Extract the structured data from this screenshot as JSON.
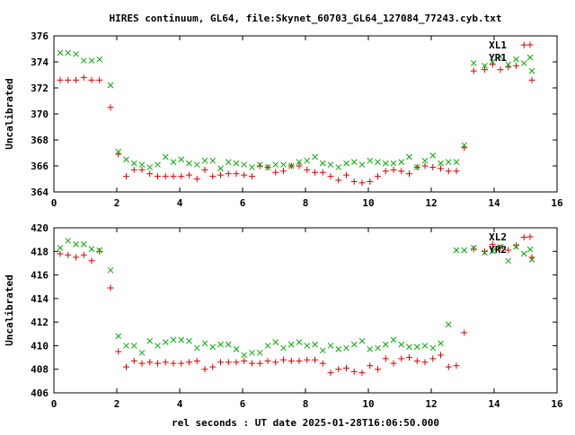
{
  "title": "HIRES continuum, GL64, file:Skynet_60703_GL64_127084_77243.cyb.txt",
  "xlabel": "rel seconds : UT date 2025-01-28T16:06:50.000",
  "colors": {
    "red": "#dd0000",
    "green": "#00aa00",
    "axis": "#000000",
    "background": "#ffffff"
  },
  "chart_data": [
    {
      "type": "scatter",
      "ylabel": "Uncalibrated",
      "xlim": [
        0,
        16
      ],
      "ylim": [
        364,
        376
      ],
      "xticks": [
        0,
        2,
        4,
        6,
        8,
        10,
        12,
        14,
        16
      ],
      "yticks": [
        364,
        366,
        368,
        370,
        372,
        374,
        376
      ],
      "legend_position": "top-right",
      "series": [
        {
          "name": "XL1",
          "marker": "plus",
          "color": "#dd0000",
          "x": [
            0.2,
            0.45,
            0.7,
            0.95,
            1.2,
            1.45,
            1.8,
            2.05,
            2.3,
            2.55,
            2.8,
            3.05,
            3.3,
            3.55,
            3.8,
            4.05,
            4.3,
            4.55,
            4.8,
            5.05,
            5.3,
            5.55,
            5.8,
            6.05,
            6.3,
            6.55,
            6.8,
            7.05,
            7.3,
            7.55,
            7.8,
            8.05,
            8.3,
            8.55,
            8.8,
            9.05,
            9.3,
            9.55,
            9.8,
            10.05,
            10.3,
            10.55,
            10.8,
            11.05,
            11.3,
            11.55,
            11.8,
            12.05,
            12.3,
            12.55,
            12.8,
            13.05,
            13.35,
            13.7,
            13.95,
            14.2,
            14.45,
            14.7,
            14.95,
            15.2
          ],
          "y": [
            372.6,
            372.6,
            372.6,
            372.8,
            372.6,
            372.6,
            370.5,
            366.9,
            365.2,
            365.7,
            365.7,
            365.4,
            365.2,
            365.2,
            365.2,
            365.2,
            365.3,
            365,
            365.7,
            365.2,
            365.3,
            365.4,
            365.4,
            365.3,
            365.2,
            366,
            365.9,
            365.5,
            365.6,
            366,
            366,
            365.7,
            365.5,
            365.5,
            365.2,
            364.9,
            365.3,
            364.8,
            364.7,
            364.8,
            365.2,
            365.6,
            365.7,
            365.6,
            365.4,
            365.9,
            366,
            365.9,
            365.8,
            365.6,
            365.6,
            367.4,
            373.3,
            373.4,
            373.8,
            373.4,
            373.6,
            373.7,
            375.3,
            372.6
          ]
        },
        {
          "name": "YR1",
          "marker": "cross",
          "color": "#00aa00",
          "x": [
            0.2,
            0.45,
            0.7,
            0.95,
            1.2,
            1.45,
            1.8,
            2.05,
            2.3,
            2.55,
            2.8,
            3.05,
            3.3,
            3.55,
            3.8,
            4.05,
            4.3,
            4.55,
            4.8,
            5.05,
            5.3,
            5.55,
            5.8,
            6.05,
            6.3,
            6.55,
            6.8,
            7.05,
            7.3,
            7.55,
            7.8,
            8.05,
            8.3,
            8.55,
            8.8,
            9.05,
            9.3,
            9.55,
            9.8,
            10.05,
            10.3,
            10.55,
            10.8,
            11.05,
            11.3,
            11.55,
            11.8,
            12.05,
            12.3,
            12.55,
            12.8,
            13.05,
            13.35,
            13.7,
            13.95,
            14.2,
            14.45,
            14.7,
            14.95,
            15.2
          ],
          "y": [
            374.7,
            374.7,
            374.6,
            374.1,
            374.1,
            374.2,
            372.2,
            367.1,
            366.5,
            366.2,
            366.1,
            365.9,
            366.1,
            366.7,
            366.3,
            366.5,
            366.2,
            366.1,
            366.4,
            366.4,
            365.8,
            366.3,
            366.2,
            366.1,
            365.9,
            366.1,
            365.9,
            366.1,
            366.1,
            366,
            366.3,
            366.4,
            366.7,
            366.2,
            366.1,
            365.9,
            366.2,
            366.3,
            366.1,
            366.4,
            366.3,
            366.2,
            366.2,
            366.3,
            366.7,
            365.9,
            366.4,
            366.8,
            366.2,
            366.3,
            366.3,
            367.6,
            373.9,
            373.7,
            374,
            374.4,
            373.8,
            374.2,
            373.9,
            373.3
          ]
        }
      ]
    },
    {
      "type": "scatter",
      "ylabel": "Uncalibrated",
      "xlim": [
        0,
        16
      ],
      "ylim": [
        406,
        420
      ],
      "xticks": [
        0,
        2,
        4,
        6,
        8,
        10,
        12,
        14,
        16
      ],
      "yticks": [
        406,
        408,
        410,
        412,
        414,
        416,
        418,
        420
      ],
      "legend_position": "top-right",
      "series": [
        {
          "name": "XL2",
          "marker": "plus",
          "color": "#dd0000",
          "x": [
            0.2,
            0.45,
            0.7,
            0.95,
            1.2,
            1.45,
            1.8,
            2.05,
            2.3,
            2.55,
            2.8,
            3.05,
            3.3,
            3.55,
            3.8,
            4.05,
            4.3,
            4.55,
            4.8,
            5.05,
            5.3,
            5.55,
            5.8,
            6.05,
            6.3,
            6.55,
            6.8,
            7.05,
            7.3,
            7.55,
            7.8,
            8.05,
            8.3,
            8.55,
            8.8,
            9.05,
            9.3,
            9.55,
            9.8,
            10.05,
            10.3,
            10.55,
            10.8,
            11.05,
            11.3,
            11.55,
            11.8,
            12.05,
            12.3,
            12.55,
            12.8,
            13.05,
            13.35,
            13.7,
            13.95,
            14.2,
            14.45,
            14.7,
            14.95,
            15.2
          ],
          "y": [
            417.8,
            417.7,
            417.5,
            417.7,
            417.2,
            418,
            414.9,
            409.5,
            408.2,
            408.7,
            408.5,
            408.6,
            408.5,
            408.6,
            408.5,
            408.5,
            408.6,
            408.7,
            408,
            408.2,
            408.6,
            408.6,
            408.6,
            408.7,
            408.5,
            408.5,
            408.7,
            408.6,
            408.8,
            408.7,
            408.7,
            408.8,
            408.8,
            408.5,
            407.7,
            408,
            408.1,
            407.8,
            407.7,
            408.3,
            408,
            408.9,
            408.5,
            408.9,
            409,
            408.7,
            408.6,
            408.9,
            409.2,
            408.2,
            408.3,
            411.1,
            418.2,
            418,
            418.6,
            418.3,
            418.1,
            418.5,
            419.2,
            417.5
          ]
        },
        {
          "name": "YR2",
          "marker": "cross",
          "color": "#00aa00",
          "x": [
            0.2,
            0.45,
            0.7,
            0.95,
            1.2,
            1.45,
            1.8,
            2.05,
            2.3,
            2.55,
            2.8,
            3.05,
            3.3,
            3.55,
            3.8,
            4.05,
            4.3,
            4.55,
            4.8,
            5.05,
            5.3,
            5.55,
            5.8,
            6.05,
            6.3,
            6.55,
            6.8,
            7.05,
            7.3,
            7.55,
            7.8,
            8.05,
            8.3,
            8.55,
            8.8,
            9.05,
            9.3,
            9.55,
            9.8,
            10.05,
            10.3,
            10.55,
            10.8,
            11.05,
            11.3,
            11.55,
            11.8,
            12.05,
            12.3,
            12.55,
            12.8,
            13.05,
            13.35,
            13.7,
            13.95,
            14.2,
            14.45,
            14.7,
            14.95,
            15.2
          ],
          "y": [
            418.3,
            418.9,
            418.6,
            418.6,
            418.2,
            418.1,
            416.4,
            410.8,
            410,
            410,
            409.4,
            410.4,
            410,
            410.3,
            410.5,
            410.5,
            410.4,
            409.8,
            410.2,
            409.9,
            410.1,
            410.1,
            409.7,
            409.2,
            409.4,
            409.4,
            410,
            410.3,
            409.8,
            410.1,
            410.3,
            410,
            410.1,
            409.6,
            410,
            409.7,
            409.8,
            410.1,
            410.4,
            409.7,
            409.8,
            410.1,
            410.5,
            410.1,
            409.9,
            409.9,
            410,
            409.8,
            410.2,
            411.8,
            418.1,
            418.1,
            418.3,
            417.9,
            418,
            418.4,
            417.2,
            418.4,
            417.8,
            417.3
          ]
        }
      ]
    }
  ]
}
